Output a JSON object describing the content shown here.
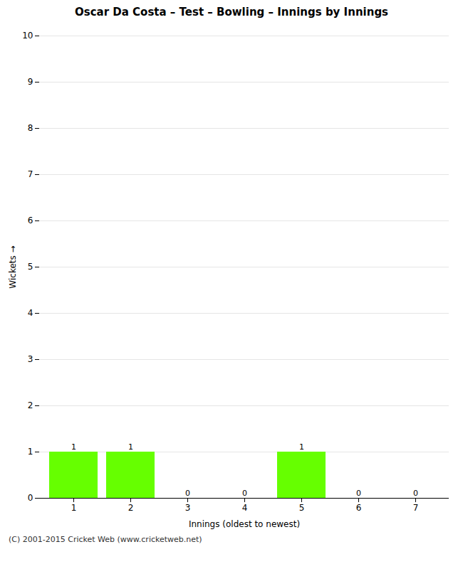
{
  "chart_data": {
    "type": "bar",
    "title": "Oscar Da Costa – Test – Bowling – Innings by Innings",
    "xlabel": "Innings (oldest to newest)",
    "ylabel": "Wickets",
    "categories": [
      "1",
      "2",
      "3",
      "4",
      "5",
      "6",
      "7"
    ],
    "values": [
      1,
      1,
      0,
      0,
      1,
      0,
      0
    ],
    "color": "#66ff00",
    "ylim": [
      0,
      10
    ],
    "yticks": [
      0,
      1,
      2,
      3,
      4,
      5,
      6,
      7,
      8,
      9,
      10
    ],
    "grid": true,
    "data_labels": true,
    "footer": "(C) 2001-2015 Cricket Web (www.cricketweb.net)"
  }
}
